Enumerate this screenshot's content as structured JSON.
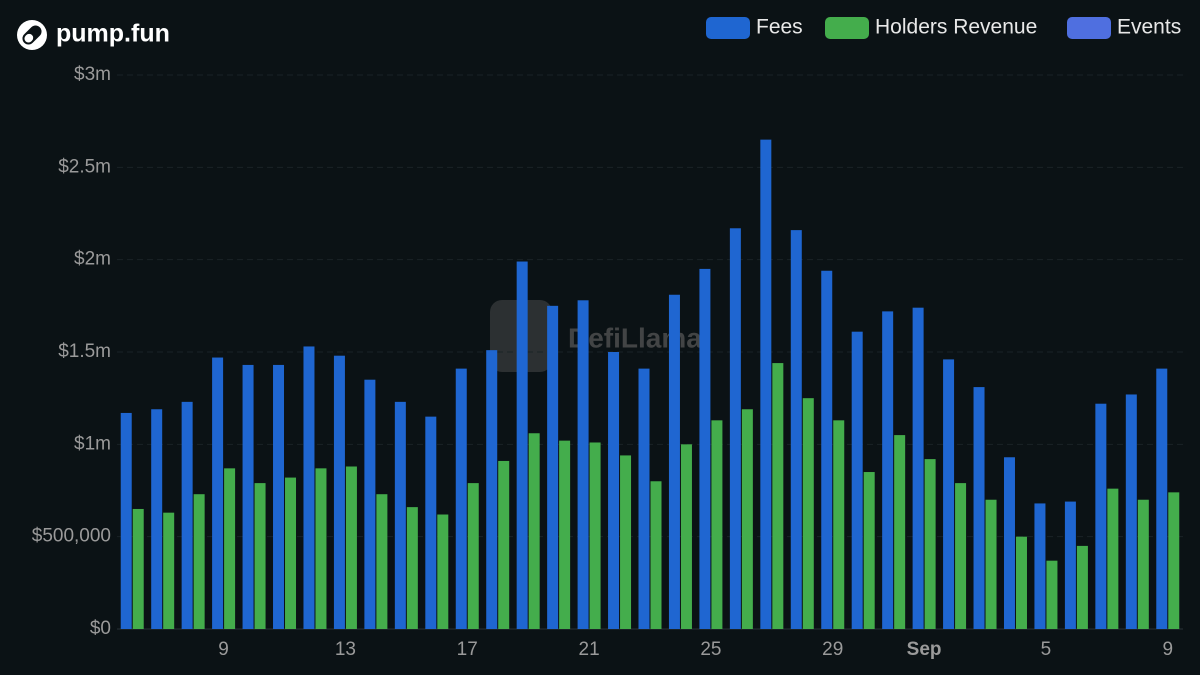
{
  "chart_data": {
    "type": "bar",
    "title": "pump.fun",
    "watermark": "DefiLlama",
    "categories": [
      null,
      null,
      null,
      "9",
      null,
      null,
      null,
      "13",
      null,
      null,
      null,
      "17",
      null,
      null,
      null,
      "21",
      null,
      null,
      null,
      "25",
      null,
      null,
      null,
      "29",
      null,
      null,
      "Sep",
      null,
      null,
      null,
      "5",
      null,
      null,
      null,
      "9"
    ],
    "series": [
      {
        "name": "Fees",
        "color": "#1f66d1",
        "values": [
          1170000,
          1190000,
          1230000,
          1470000,
          1430000,
          1430000,
          1530000,
          1480000,
          1350000,
          1230000,
          1150000,
          1410000,
          1510000,
          1990000,
          1750000,
          1780000,
          1500000,
          1410000,
          1810000,
          1950000,
          2170000,
          2650000,
          2160000,
          1940000,
          1610000,
          1720000,
          1740000,
          1460000,
          1310000,
          930000,
          680000,
          690000,
          1220000,
          1270000,
          1410000
        ]
      },
      {
        "name": "Holders Revenue",
        "color": "#44ad4c",
        "values": [
          650000,
          630000,
          730000,
          870000,
          790000,
          820000,
          870000,
          880000,
          730000,
          660000,
          620000,
          790000,
          910000,
          1060000,
          1020000,
          1010000,
          940000,
          800000,
          1000000,
          1130000,
          1190000,
          1440000,
          1250000,
          1130000,
          850000,
          1050000,
          920000,
          790000,
          700000,
          500000,
          370000,
          450000,
          760000,
          700000,
          740000
        ]
      },
      {
        "name": "Events",
        "color": "#4f6fe0",
        "values": [
          null,
          null,
          null,
          null,
          null,
          null,
          null,
          null,
          null,
          null,
          null,
          null,
          null,
          null,
          null,
          null,
          null,
          null,
          null,
          null,
          null,
          null,
          null,
          null,
          null,
          null,
          null,
          null,
          null,
          null,
          null,
          null,
          null,
          null,
          null
        ]
      }
    ],
    "ylim": [
      0,
      3000000
    ],
    "yticks": [
      {
        "value": 0,
        "label": "$0"
      },
      {
        "value": 500000,
        "label": "$500,000"
      },
      {
        "value": 1000000,
        "label": "$1m"
      },
      {
        "value": 1500000,
        "label": "$1.5m"
      },
      {
        "value": 2000000,
        "label": "$2m"
      },
      {
        "value": 2500000,
        "label": "$2.5m"
      },
      {
        "value": 3000000,
        "label": "$3m"
      }
    ],
    "grid": true,
    "legend": "top-right"
  }
}
